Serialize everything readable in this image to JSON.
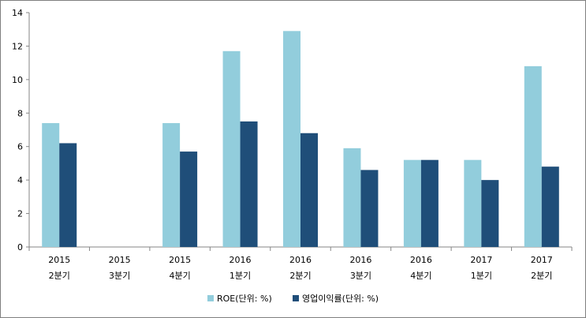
{
  "chart_data": {
    "type": "bar",
    "categories": [
      {
        "year": "2015",
        "quarter": "2분기"
      },
      {
        "year": "2015",
        "quarter": "3분기"
      },
      {
        "year": "2015",
        "quarter": "4분기"
      },
      {
        "year": "2016",
        "quarter": "1분기"
      },
      {
        "year": "2016",
        "quarter": "2분기"
      },
      {
        "year": "2016",
        "quarter": "3분기"
      },
      {
        "year": "2016",
        "quarter": "4분기"
      },
      {
        "year": "2017",
        "quarter": "1분기"
      },
      {
        "year": "2017",
        "quarter": "2분기"
      }
    ],
    "series": [
      {
        "name": "ROE(단위: %)",
        "color": "#92cddc",
        "values": [
          7.4,
          0,
          7.4,
          11.7,
          12.9,
          5.9,
          5.2,
          5.2,
          10.8
        ]
      },
      {
        "name": "영업이익률(단위: %)",
        "color": "#1f4e79",
        "values": [
          6.2,
          0,
          5.7,
          7.5,
          6.8,
          4.6,
          5.2,
          4.0,
          4.8
        ]
      }
    ],
    "ylim": [
      0,
      14
    ],
    "yticks": [
      0,
      2,
      4,
      6,
      8,
      10,
      12,
      14
    ],
    "grid": false,
    "legend_position": "bottom"
  }
}
